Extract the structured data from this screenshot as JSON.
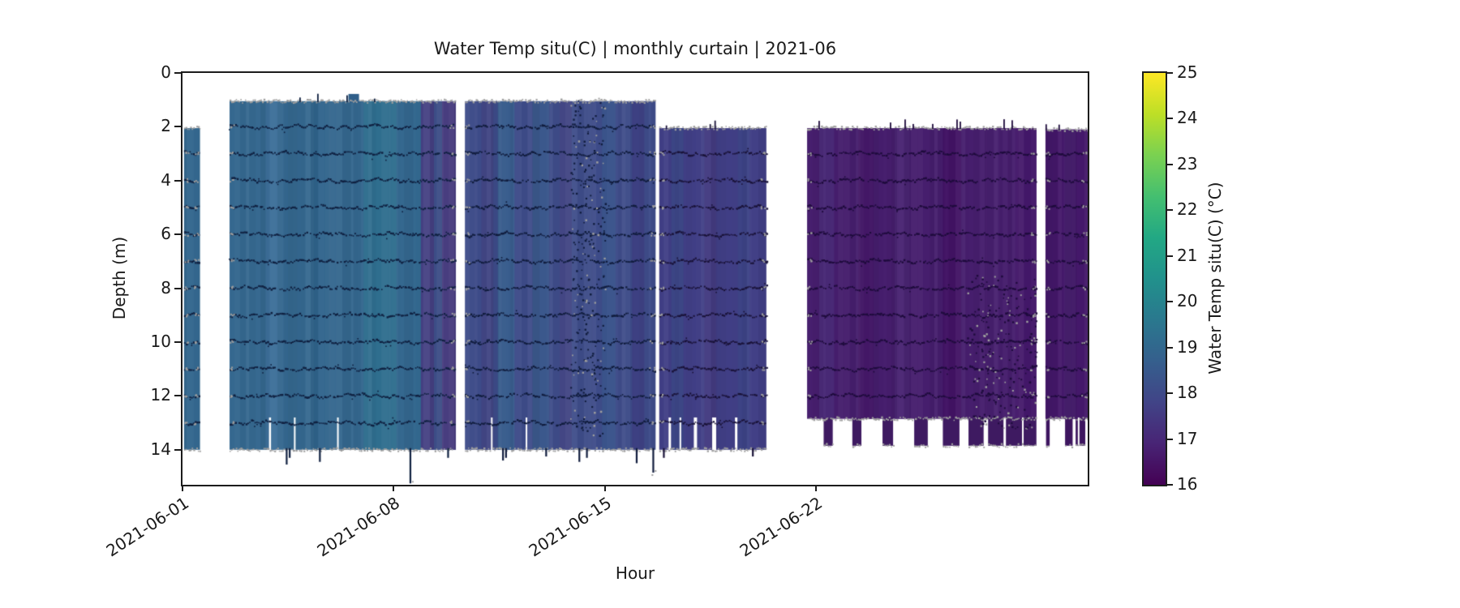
{
  "chart_data": {
    "type": "heatmap",
    "title": "Water Temp situ(C) | monthly curtain | 2021-06",
    "xlabel": "Hour",
    "ylabel": "Depth (m)",
    "grid": false,
    "x_axis": {
      "range_days": [
        0,
        30
      ],
      "ticks": [
        {
          "day": 0,
          "label": "2021-06-01"
        },
        {
          "day": 7,
          "label": "2021-06-08"
        },
        {
          "day": 14,
          "label": "2021-06-15"
        },
        {
          "day": 21,
          "label": "2021-06-22"
        }
      ]
    },
    "y_axis": {
      "range_m": [
        0,
        15.3
      ],
      "ticks": [
        "0",
        "2",
        "4",
        "6",
        "8",
        "10",
        "12",
        "14"
      ],
      "tick_values_m": [
        0,
        2,
        4,
        6,
        8,
        10,
        12,
        14
      ],
      "inverted": true
    },
    "colorbar": {
      "label": "Water Temp situ(C) (°C)",
      "min": 16,
      "max": 25,
      "ticks": [
        "16",
        "17",
        "18",
        "19",
        "20",
        "21",
        "22",
        "23",
        "24",
        "25"
      ],
      "colormap": "viridis",
      "stops_bottom_to_top": [
        "#440154",
        "#482475",
        "#414487",
        "#355f8d",
        "#2a788e",
        "#21918c",
        "#22a884",
        "#44bf70",
        "#7ad151",
        "#bddf26",
        "#fde725"
      ]
    },
    "axis_color": "#1c1c1c",
    "surface_speckle_color": "#9e9e9e",
    "segments": [
      {
        "id": "seg-1",
        "start_day": 0.05,
        "end_day": 0.58,
        "top_m": 2.05,
        "bottom_m": 14.0,
        "mean_temp_c": 19.0,
        "base_color": "#34688f",
        "trace_color": "#0f2040",
        "trace_depths_m": [
          3,
          4,
          5,
          6,
          7,
          8,
          9,
          10,
          11,
          12,
          13
        ],
        "bands": [],
        "bottom_gaps": [],
        "below_spikes": [],
        "deep_columns": [],
        "top_spike_rate": 0.02,
        "noise": null,
        "bump": null
      },
      {
        "id": "seg-2",
        "start_day": 1.56,
        "end_day": 9.06,
        "top_m": 1.05,
        "bottom_m": 14.0,
        "mean_temp_c": 18.9,
        "base_color": "#35688f",
        "trace_color": "#0f2040",
        "trace_depths_m": [
          2,
          3,
          4,
          5,
          6,
          7,
          8,
          9,
          10,
          11,
          12,
          13
        ],
        "bands": [
          {
            "from": 2.75,
            "to": 3.15,
            "color": "#3d6f99",
            "temp_c": 19.3
          },
          {
            "from": 4.35,
            "to": 4.85,
            "color": "#30648c",
            "temp_c": 18.6
          },
          {
            "from": 6.0,
            "to": 7.1,
            "color": "#2f6e8e",
            "temp_c": 19.5
          },
          {
            "from": 7.5,
            "to": 7.9,
            "color": "#33688f",
            "temp_c": 18.9
          },
          {
            "from": 7.9,
            "to": 8.35,
            "color": "#454083",
            "temp_c": 17.9
          },
          {
            "from": 8.35,
            "to": 8.6,
            "color": "#3d4e87",
            "temp_c": 18.2
          },
          {
            "from": 8.6,
            "to": 9.06,
            "color": "#483d7f",
            "temp_c": 17.8
          }
        ],
        "bottom_gaps": [
          {
            "day": 2.9,
            "w": 2.5
          },
          {
            "day": 3.72,
            "w": 2
          },
          {
            "day": 5.15,
            "w": 2
          }
        ],
        "below_spikes": [
          {
            "day": 3.45,
            "to_m": 14.55
          },
          {
            "day": 3.55,
            "to_m": 14.3
          },
          {
            "day": 4.55,
            "to_m": 14.45
          },
          {
            "day": 7.55,
            "to_m": 15.25
          },
          {
            "day": 8.8,
            "to_m": 14.3
          }
        ],
        "deep_columns": [],
        "top_spike_rate": 0.05,
        "noise": null,
        "bump": {
          "from": 5.5,
          "to": 5.85,
          "top_m": 0.78,
          "color": "#2f5f8a"
        }
      },
      {
        "id": "seg-3",
        "start_day": 9.36,
        "end_day": 15.68,
        "top_m": 1.05,
        "bottom_m": 14.0,
        "mean_temp_c": 18.4,
        "base_color": "#3e4c89",
        "trace_color": "#101c3d",
        "trace_depths_m": [
          2,
          3,
          4,
          5,
          6,
          7,
          8,
          9,
          10,
          11,
          12,
          13
        ],
        "bands": [
          {
            "from": 9.9,
            "to": 10.3,
            "color": "#424684",
            "temp_c": 18.0
          },
          {
            "from": 10.45,
            "to": 11.0,
            "color": "#3a5e8e",
            "temp_c": 18.8
          },
          {
            "from": 11.6,
            "to": 12.15,
            "color": "#3c598d",
            "temp_c": 18.7
          },
          {
            "from": 12.5,
            "to": 12.9,
            "color": "#414483",
            "temp_c": 17.9
          },
          {
            "from": 13.9,
            "to": 14.35,
            "color": "#3b548c",
            "temp_c": 18.6
          },
          {
            "from": 14.9,
            "to": 15.3,
            "color": "#3f4285",
            "temp_c": 17.9
          }
        ],
        "bottom_gaps": [
          {
            "day": 10.25,
            "w": 2
          },
          {
            "day": 11.4,
            "w": 2
          }
        ],
        "below_spikes": [
          {
            "day": 10.62,
            "to_m": 14.4
          },
          {
            "day": 10.72,
            "to_m": 14.3
          },
          {
            "day": 12.05,
            "to_m": 14.25
          },
          {
            "day": 13.15,
            "to_m": 14.45
          },
          {
            "day": 13.4,
            "to_m": 14.3
          },
          {
            "day": 15.05,
            "to_m": 14.5
          },
          {
            "day": 15.6,
            "to_m": 14.85
          }
        ],
        "deep_columns": [],
        "top_spike_rate": 0.06,
        "noise": {
          "from": 12.85,
          "to": 14.0,
          "top_m": 0.9,
          "bottom_m": 13.5,
          "density": 260
        },
        "bump": null
      },
      {
        "id": "seg-4",
        "start_day": 15.8,
        "end_day": 19.35,
        "top_m": 2.05,
        "bottom_m": 14.0,
        "mean_temp_c": 17.8,
        "base_color": "#413f86",
        "trace_color": "#191238",
        "trace_depths_m": [
          3,
          4,
          5,
          6,
          7,
          8,
          9,
          10,
          11,
          12,
          13
        ],
        "bands": [
          {
            "from": 16.2,
            "to": 16.6,
            "color": "#3d4787",
            "temp_c": 18.0
          },
          {
            "from": 17.3,
            "to": 17.7,
            "color": "#443c82",
            "temp_c": 17.7
          },
          {
            "from": 18.4,
            "to": 18.8,
            "color": "#3e4487",
            "temp_c": 17.9
          }
        ],
        "bottom_gaps": [
          {
            "day": 16.15,
            "w": 3
          },
          {
            "day": 16.5,
            "w": 2
          },
          {
            "day": 17.0,
            "w": 4
          },
          {
            "day": 17.62,
            "w": 5
          },
          {
            "day": 18.35,
            "w": 3
          }
        ],
        "below_spikes": [
          {
            "day": 15.95,
            "to_m": 14.3
          },
          {
            "day": 18.9,
            "to_m": 14.25
          }
        ],
        "deep_columns": [],
        "top_spike_rate": 0.07,
        "noise": null,
        "bump": null
      },
      {
        "id": "seg-5",
        "start_day": 20.7,
        "end_day": 28.3,
        "top_m": 2.05,
        "bottom_m": 13.85,
        "body_bottom_m": 12.85,
        "mean_temp_c": 16.8,
        "base_color": "#461e6d",
        "trace_color": "#1e0b3c",
        "trace_depths_m": [
          3,
          4,
          5,
          6,
          7,
          8,
          9,
          10,
          11,
          12
        ],
        "bands": [
          {
            "from": 21.1,
            "to": 21.6,
            "color": "#4a2a77",
            "temp_c": 17.1
          },
          {
            "from": 22.4,
            "to": 22.9,
            "color": "#431766",
            "temp_c": 16.6
          },
          {
            "from": 23.6,
            "to": 24.1,
            "color": "#4a2573",
            "temp_c": 17.0
          },
          {
            "from": 25.2,
            "to": 25.8,
            "color": "#421364",
            "temp_c": 16.5
          },
          {
            "from": 26.6,
            "to": 27.1,
            "color": "#48206f",
            "temp_c": 16.9
          },
          {
            "from": 27.6,
            "to": 28.3,
            "color": "#44186a",
            "temp_c": 16.6
          }
        ],
        "bottom_gaps": [
          {
            "day": 27.25,
            "w": 3
          },
          {
            "day": 27.85,
            "w": 2
          }
        ],
        "below_spikes": [],
        "deep_columns": [
          {
            "from": 21.25,
            "to": 21.55
          },
          {
            "from": 22.2,
            "to": 22.5
          },
          {
            "from": 23.2,
            "to": 23.55
          },
          {
            "from": 24.25,
            "to": 24.7
          },
          {
            "from": 25.2,
            "to": 25.75
          },
          {
            "from": 26.05,
            "to": 26.55
          },
          {
            "from": 26.7,
            "to": 28.3
          }
        ],
        "top_spike_rate": 0.18,
        "noise": {
          "from": 26.0,
          "to": 28.3,
          "top_m": 7.5,
          "bottom_m": 13.2,
          "density": 220
        },
        "bump": null
      },
      {
        "id": "seg-6",
        "start_day": 28.6,
        "end_day": 30.0,
        "top_m": 2.1,
        "bottom_m": 13.85,
        "body_bottom_m": 12.85,
        "mean_temp_c": 16.6,
        "base_color": "#44186a",
        "trace_color": "#1e0b3c",
        "trace_depths_m": [
          3,
          4,
          5,
          6,
          7,
          8,
          9,
          10,
          11,
          12
        ],
        "bands": [
          {
            "from": 29.2,
            "to": 29.6,
            "color": "#48206f",
            "temp_c": 16.9
          }
        ],
        "bottom_gaps": [
          {
            "day": 29.7,
            "w": 2
          }
        ],
        "below_spikes": [],
        "deep_columns": [
          {
            "from": 28.62,
            "to": 28.74
          },
          {
            "from": 29.25,
            "to": 29.5
          },
          {
            "from": 29.6,
            "to": 29.92
          }
        ],
        "top_spike_rate": 0.15,
        "noise": null,
        "bump": null
      }
    ]
  }
}
